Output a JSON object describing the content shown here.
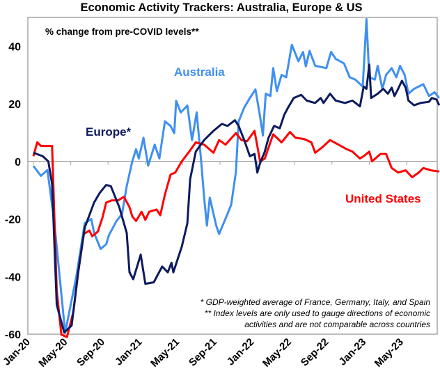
{
  "chart_data": {
    "type": "line",
    "title": "Economic Activity Trackers: Australia, Europe & US",
    "ylabel": "% change from pre-COVID levels**",
    "xlabel": "",
    "x_units": "months since Jan-20",
    "xlim": [
      0,
      43.5
    ],
    "ylim": [
      -60,
      50
    ],
    "yticks": [
      -60,
      -40,
      -20,
      0,
      20,
      40
    ],
    "ytick_labels": [
      "-60",
      "-40",
      "-20",
      "0",
      "20",
      "40"
    ],
    "xticks": [
      0,
      4,
      8,
      12,
      16,
      20,
      24,
      28,
      32,
      36,
      40
    ],
    "xtick_labels": [
      "Jan-20",
      "May-20",
      "Sep-20",
      "Jan-21",
      "May-21",
      "Sep-21",
      "Jan-22",
      "May-22",
      "Sep-22",
      "Jan-23",
      "May-23"
    ],
    "grid": false,
    "footnotes": [
      "* GDP-weighted average of France, Germany, Italy, and Spain",
      "** Index levels are only used to gauge  directions of economic",
      "activities and are not comparable across countries"
    ],
    "series": [
      {
        "name": "Australia",
        "color": "#3f8ff2",
        "x": [
          0,
          0.8,
          1.5,
          2.2,
          3.4,
          4.6,
          5.5,
          6.2,
          6.5,
          7.2,
          7.8,
          8.1,
          8.9,
          9.5,
          10.0,
          10.6,
          11.0,
          11.3,
          11.8,
          12.3,
          13.0,
          13.5,
          14.1,
          14.7,
          15.1,
          15.3,
          15.8,
          16.5,
          17.0,
          17.5,
          18.0,
          18.3,
          18.6,
          18.9,
          19.6,
          19.9,
          20.8,
          21.2,
          21.7,
          22.0,
          22.6,
          23.2,
          23.8,
          24.3,
          24.6,
          24.9,
          25.4,
          25.7,
          26.1,
          26.6,
          27.1,
          27.7,
          28.4,
          28.9,
          29.2,
          29.6,
          30.2,
          31.4,
          31.9,
          32.4,
          33.3,
          33.9,
          34.5,
          35.3,
          35.7,
          36.0,
          36.6,
          36.9,
          37.4,
          37.8,
          38.4,
          38.9,
          39.3,
          39.8,
          40.2,
          40.8,
          41.8,
          42.4,
          43.0,
          43.5
        ],
        "y": [
          -1.6,
          -5,
          -3,
          -20,
          -59.5,
          -40,
          -21.5,
          -20,
          -24.8,
          -30.4,
          -28.8,
          -25.6,
          -20.7,
          -18.3,
          -8.6,
          0,
          4.2,
          1,
          8.2,
          -1.5,
          5.8,
          1,
          13.9,
          12.3,
          9.8,
          21,
          17,
          19.4,
          7.4,
          17,
          -0.6,
          -12.6,
          -22.3,
          -12.6,
          -22.3,
          -25.2,
          -18.3,
          -15,
          -3.8,
          13.9,
          18.7,
          22,
          25,
          15.5,
          9,
          23.5,
          22.7,
          32.4,
          24.4,
          30,
          29.2,
          40.5,
          34.8,
          38,
          33,
          38.4,
          33.2,
          32.4,
          38,
          35.6,
          34,
          29.2,
          28.4,
          26,
          49.4,
          29.2,
          28.4,
          33.2,
          25.2,
          30,
          32.4,
          29.2,
          33.2,
          30,
          23.5,
          25.2,
          26.8,
          22.7,
          24,
          22
        ]
      },
      {
        "name": "Europe*",
        "color": "#0c1a5e",
        "x": [
          0,
          1.0,
          1.6,
          2.0,
          2.5,
          3.3,
          4.1,
          4.8,
          5.5,
          6.5,
          7.1,
          7.8,
          8.3,
          8.6,
          9.2,
          10.0,
          10.3,
          10.7,
          11.5,
          12.0,
          12.9,
          13.8,
          14.4,
          14.8,
          15.0,
          15.9,
          16.5,
          16.8,
          17.4,
          18.3,
          19.3,
          20.2,
          20.8,
          21.6,
          22.0,
          22.6,
          23.2,
          23.7,
          24.0,
          24.3,
          24.8,
          25.2,
          25.8,
          26.4,
          26.9,
          27.3,
          27.9,
          28.7,
          29.3,
          30.2,
          30.8,
          31.1,
          31.8,
          32.4,
          33.4,
          34.2,
          35.0,
          35.4,
          35.7,
          36.0,
          36.2,
          36.9,
          37.5,
          38.0,
          38.4,
          38.7,
          39.1,
          39.5,
          39.9,
          40.2,
          40.8,
          41.5,
          42.4,
          42.7,
          43.2,
          43.5
        ],
        "y": [
          3,
          1.8,
          0,
          -7.8,
          -49.8,
          -59.4,
          -57,
          -38.5,
          -23,
          -14.3,
          -11,
          -8.2,
          -8.6,
          -11,
          -15.9,
          -24.8,
          -38.5,
          -40.9,
          -32.4,
          -42.5,
          -42,
          -36.5,
          -38.5,
          -35.2,
          -38.5,
          -29.6,
          -21.5,
          -6.2,
          3.4,
          7.4,
          10.6,
          13,
          12.3,
          14.3,
          12.3,
          7.4,
          1.8,
          2.6,
          -3.9,
          -0.6,
          3.4,
          8.2,
          12.3,
          11.5,
          16.3,
          18.7,
          22,
          23.1,
          21.1,
          20.3,
          22,
          20.3,
          23.5,
          21.1,
          20.3,
          21.1,
          19.1,
          26,
          25.2,
          33.6,
          22,
          23.5,
          25.2,
          23.5,
          25.6,
          22.7,
          25.2,
          28,
          25.6,
          21.1,
          19.5,
          20.3,
          20.7,
          22,
          21.5,
          19.5
        ]
      },
      {
        "name": "United States",
        "color": "#ff0000",
        "x": [
          0,
          0.4,
          0.8,
          2.0,
          2.5,
          3.0,
          3.6,
          4.3,
          4.8,
          5.4,
          6.0,
          6.3,
          6.9,
          7.4,
          7.8,
          8.4,
          9.1,
          9.7,
          10.3,
          10.6,
          11.0,
          11.6,
          12.0,
          12.4,
          13.2,
          13.6,
          14.1,
          14.7,
          15.2,
          15.9,
          16.7,
          17.4,
          18.3,
          19.3,
          19.9,
          20.6,
          21.7,
          22.3,
          22.9,
          23.7,
          24.3,
          24.8,
          25.7,
          26.6,
          27.5,
          28.1,
          29.0,
          29.8,
          30.2,
          31.0,
          31.8,
          32.7,
          33.6,
          34.2,
          35.0,
          35.4,
          36.0,
          36.3,
          37.2,
          37.8,
          38.4,
          39.1,
          39.9,
          40.6,
          41.3,
          41.8,
          42.6,
          43.5
        ],
        "y": [
          1.8,
          6.6,
          5.4,
          5.4,
          -45,
          -60.2,
          -61,
          -52,
          -38.5,
          -25.2,
          -24,
          -26,
          -24.4,
          -19.5,
          -14.3,
          -13.5,
          -13.5,
          -12.3,
          -15.9,
          -19.1,
          -20.7,
          -17.5,
          -20.3,
          -17.5,
          -16.7,
          -18.7,
          -11.5,
          -4.6,
          -3.9,
          0,
          3.4,
          6.6,
          5.8,
          3,
          7.4,
          5.8,
          9.8,
          7.4,
          7,
          10.6,
          0,
          1,
          9.4,
          6.6,
          10.2,
          8.2,
          7.8,
          6.6,
          3,
          5,
          7.4,
          5.8,
          4.2,
          3.4,
          1,
          1.8,
          3.4,
          0,
          2.6,
          2.6,
          -2.3,
          -3.9,
          -3.1,
          -5.5,
          -3.9,
          -2.3,
          -3.1,
          -3.5
        ]
      }
    ]
  }
}
